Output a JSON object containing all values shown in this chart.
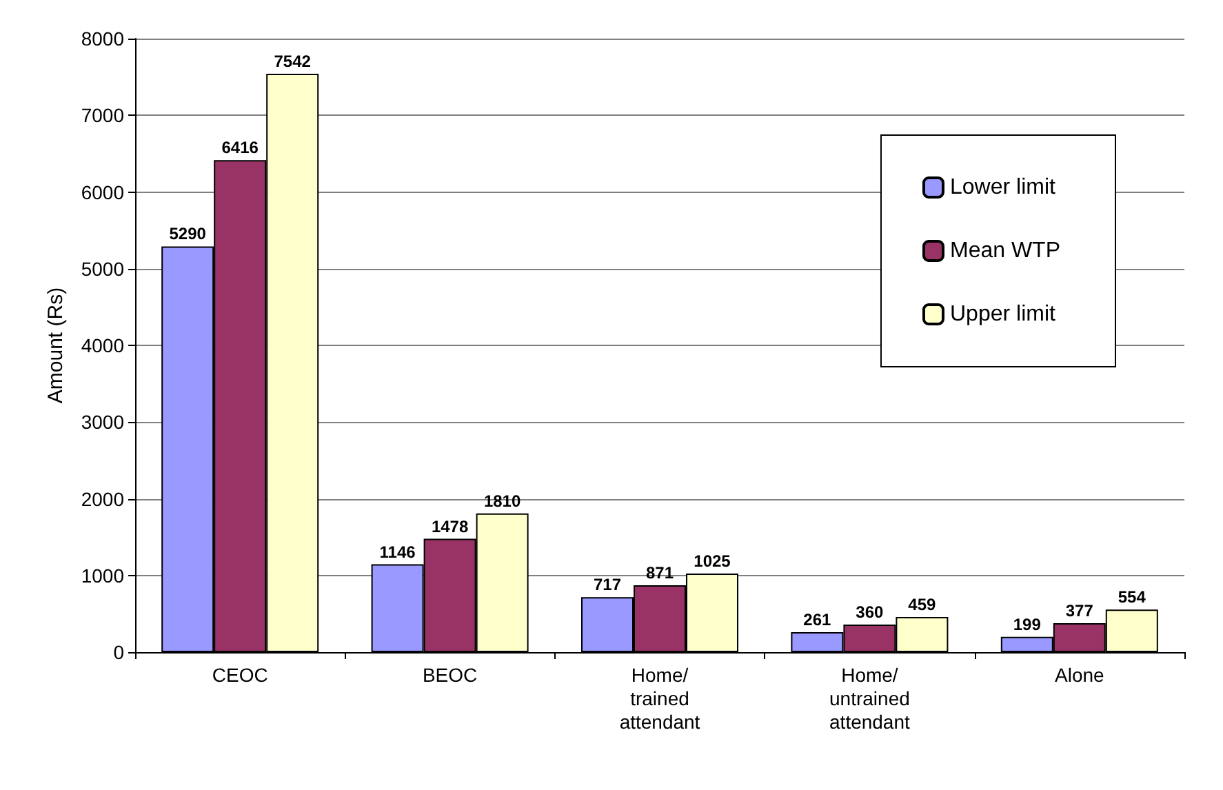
{
  "chart_data": {
    "type": "bar",
    "ylabel": "Amount (Rs)",
    "categories": [
      "CEOC",
      "BEOC",
      "Home/ trained attendant",
      "Home/ untrained attendant",
      "Alone"
    ],
    "series": [
      {
        "name": "Lower limit",
        "color": "#9999ff",
        "values": [
          5290,
          1146,
          717,
          261,
          199
        ]
      },
      {
        "name": "Mean WTP",
        "color": "#993366",
        "values": [
          6416,
          1478,
          871,
          360,
          377
        ]
      },
      {
        "name": "Upper limit",
        "color": "#ffffcc",
        "values": [
          7542,
          1810,
          1025,
          459,
          554
        ]
      }
    ],
    "ylim": [
      0,
      8000
    ],
    "yticks": [
      0,
      1000,
      2000,
      3000,
      4000,
      5000,
      6000,
      7000,
      8000
    ],
    "grid": "y",
    "legend": "top right",
    "data_labels": true
  }
}
